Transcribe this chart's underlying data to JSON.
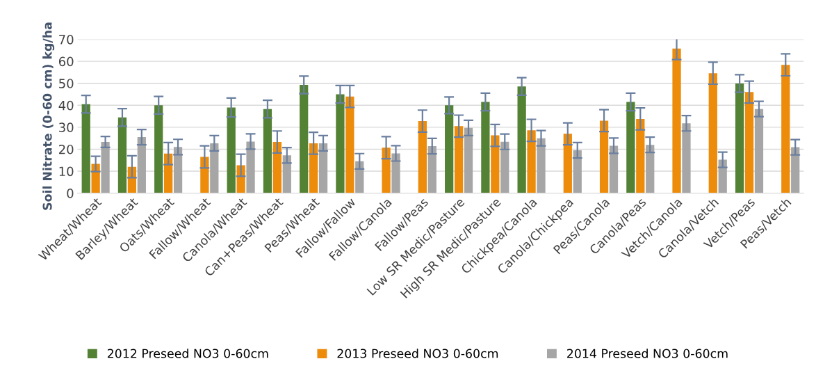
{
  "chart_data": {
    "type": "bar",
    "ylabel": "Soil Nitrate (0-60 cm) kg/ha",
    "categories": [
      "Wheat/Wheat",
      "Barley/Wheat",
      "Oats/Wheat",
      "Fallow/Wheat",
      "Canola/Wheat",
      "Can+Peas/Wheat",
      "Peas/Wheat",
      "Fallow/Fallow",
      "Fallow/Canola",
      "Fallow/Peas",
      "Low SR Medic/Pasture",
      "High SR Medic/Pasture",
      "Chickpea/Canola",
      "Canola/Chickpea",
      "Peas/Canola",
      "Canola/Peas",
      "Vetch/Canola",
      "Canola/Vetch",
      "Vetch/Peas",
      "Peas/Vetch"
    ],
    "series": [
      {
        "name": "2012 Preseed NO3 0-60cm",
        "color": "#548235",
        "values": [
          40.5,
          34.5,
          40,
          null,
          39,
          38.3,
          49.3,
          45,
          null,
          null,
          40,
          41.5,
          48.6,
          null,
          null,
          41.5,
          null,
          null,
          49.9,
          null
        ],
        "errors": [
          4,
          4,
          4,
          null,
          4.3,
          4,
          4,
          4,
          null,
          null,
          3.8,
          4,
          4,
          null,
          null,
          4,
          null,
          null,
          4,
          null
        ]
      },
      {
        "name": "2013 Preseed NO3 0-60cm",
        "color": "#ed8b0a",
        "values": [
          13.3,
          12,
          18,
          16.5,
          12.7,
          23.3,
          22.7,
          44,
          20.7,
          32.8,
          30.5,
          26.3,
          28.6,
          27,
          33,
          33.8,
          65.8,
          54.6,
          46,
          58.4
        ],
        "errors": [
          3.5,
          5,
          5,
          5,
          5,
          5,
          5,
          5,
          5,
          5,
          5,
          5,
          5,
          5,
          5,
          5,
          5,
          5,
          5,
          5
        ]
      },
      {
        "name": "2014 Preseed NO3 0-60cm",
        "color": "#a6a6a6",
        "values": [
          23.3,
          25.5,
          21,
          22.7,
          23.5,
          17.2,
          22.7,
          14.5,
          18.1,
          21.4,
          29.7,
          23.4,
          25,
          19.5,
          21.6,
          22,
          31.8,
          15.2,
          38.3,
          20.9
        ],
        "errors": [
          2.5,
          3.5,
          3.5,
          3.5,
          3.5,
          3.5,
          3.5,
          3.5,
          3.5,
          3.5,
          3.5,
          3.5,
          3.5,
          3.5,
          3.5,
          3.5,
          3.5,
          3.5,
          3.5,
          3.5
        ]
      }
    ],
    "ylim": [
      0,
      70
    ],
    "yticks": [
      0,
      10,
      20,
      30,
      40,
      50,
      60,
      70
    ],
    "grid": "y",
    "legend": "bottom"
  }
}
